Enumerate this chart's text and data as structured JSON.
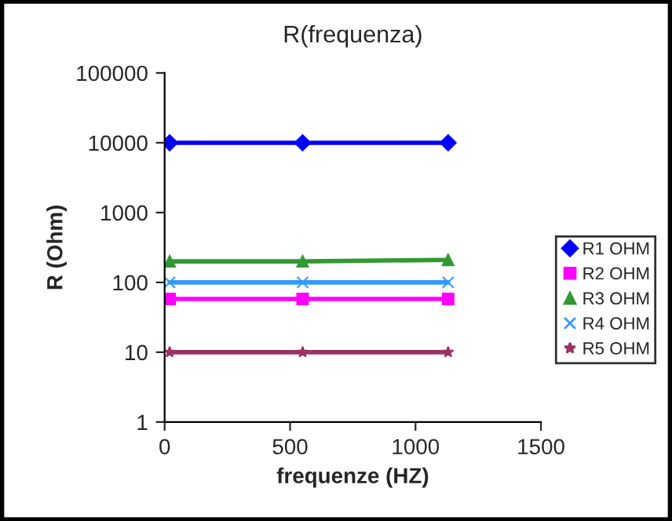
{
  "chart_data": {
    "type": "line",
    "title": "R(frequenza)",
    "xlabel": "frequenze (HZ)",
    "ylabel": "R (Ohm)",
    "x": [
      20,
      550,
      1130
    ],
    "series": [
      {
        "name": "R1 OHM",
        "color": "#0000ff",
        "marker": "diamond",
        "values": [
          10000,
          10000,
          10000
        ]
      },
      {
        "name": "R2 OHM",
        "color": "#ff00ff",
        "marker": "square",
        "values": [
          58,
          58,
          58
        ]
      },
      {
        "name": "R3 OHM",
        "color": "#339933",
        "marker": "triangle",
        "values": [
          200,
          200,
          210
        ]
      },
      {
        "name": "R4 OHM",
        "color": "#3399ff",
        "marker": "cross",
        "values": [
          100,
          100,
          100
        ]
      },
      {
        "name": "R5 OHM",
        "color": "#993366",
        "marker": "star",
        "values": [
          10,
          10,
          10
        ]
      }
    ],
    "log": "y",
    "xlim": [
      0,
      1500
    ],
    "xticks": [
      0,
      500,
      1000,
      1500
    ],
    "ylim": [
      1,
      100000
    ],
    "yticks": [
      1,
      10,
      100,
      1000,
      10000,
      100000
    ],
    "grid": false,
    "legend": "right"
  }
}
